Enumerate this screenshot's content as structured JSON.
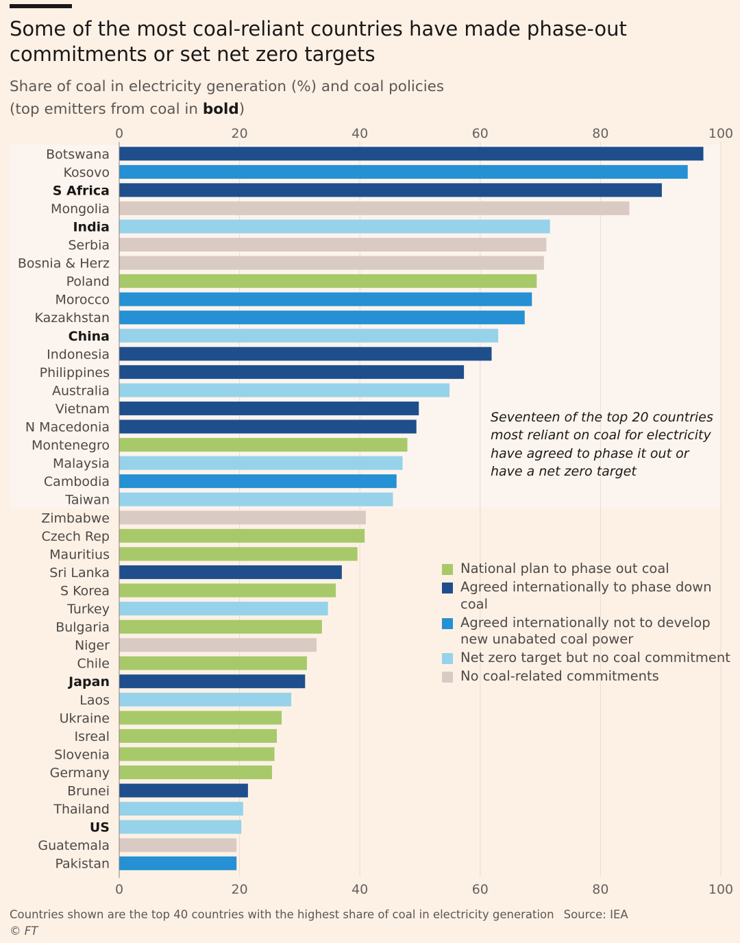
{
  "title": "Some of the most coal-reliant countries have made phase-out commitments or set net zero targets",
  "subtitle_line1": "Share of coal in electricity generation (%) and coal policies",
  "subtitle_line2_prefix": "(top emitters from coal in ",
  "subtitle_line2_bold": "bold",
  "subtitle_line2_suffix": ")",
  "annotation": "Seventeen of the top 20 countries most reliant on coal for electricity have agreed to phase it out or have a net zero target",
  "footnote": "Countries shown are the top 40 countries with the highest share of coal in electricity generation",
  "source": "Source: IEA",
  "credit": "© FT",
  "colors": {
    "national": "#a7c96a",
    "phase_down": "#1e4f8c",
    "not_develop": "#2590d3",
    "net_zero": "#96d3ea",
    "none": "#d9cbc3",
    "highlight_bg": "#fcf4ee",
    "grid": "#e8dcd2"
  },
  "legend": [
    {
      "key": "national",
      "label": "National plan to phase out coal"
    },
    {
      "key": "phase_down",
      "label": "Agreed internationally to phase down coal"
    },
    {
      "key": "not_develop",
      "label": "Agreed internationally not to develop new unabated coal power"
    },
    {
      "key": "net_zero",
      "label": "Net zero target but no coal commitment"
    },
    {
      "key": "none",
      "label": "No coal-related commitments"
    }
  ],
  "chart_data": {
    "type": "bar",
    "orientation": "horizontal",
    "title": "Some of the most coal-reliant countries have made phase-out commitments or set net zero targets",
    "xlabel": "Share of coal in electricity generation (%)",
    "xlim": [
      0,
      100
    ],
    "xticks": [
      0,
      20,
      40,
      60,
      80,
      100
    ],
    "highlight_top_n": 20,
    "categories": [
      "Botswana",
      "Kosovo",
      "S Africa",
      "Mongolia",
      "India",
      "Serbia",
      "Bosnia & Herz",
      "Poland",
      "Morocco",
      "Kazakhstan",
      "China",
      "Indonesia",
      "Philippines",
      "Australia",
      "Vietnam",
      "N Macedonia",
      "Montenegro",
      "Malaysia",
      "Cambodia",
      "Taiwan",
      "Zimbabwe",
      "Czech Rep",
      "Mauritius",
      "Sri Lanka",
      "S Korea",
      "Turkey",
      "Bulgaria",
      "Niger",
      "Chile",
      "Japan",
      "Laos",
      "Ukraine",
      "Isreal",
      "Slovenia",
      "Germany",
      "Brunei",
      "Thailand",
      "US",
      "Guatemala",
      "Pakistan"
    ],
    "values": [
      97.1,
      94.5,
      90.2,
      84.8,
      71.6,
      71.0,
      70.6,
      69.4,
      68.6,
      67.4,
      63.0,
      61.9,
      57.3,
      54.9,
      49.8,
      49.4,
      47.9,
      47.1,
      46.1,
      45.5,
      41.0,
      40.8,
      39.6,
      37.0,
      36.0,
      34.7,
      33.7,
      32.8,
      31.2,
      30.9,
      28.6,
      27.0,
      26.2,
      25.8,
      25.4,
      21.4,
      20.6,
      20.3,
      19.5,
      19.5
    ],
    "policy": [
      "phase_down",
      "not_develop",
      "phase_down",
      "none",
      "net_zero",
      "none",
      "none",
      "national",
      "not_develop",
      "not_develop",
      "net_zero",
      "phase_down",
      "phase_down",
      "net_zero",
      "phase_down",
      "phase_down",
      "national",
      "net_zero",
      "not_develop",
      "net_zero",
      "none",
      "national",
      "national",
      "phase_down",
      "national",
      "net_zero",
      "national",
      "none",
      "national",
      "phase_down",
      "net_zero",
      "national",
      "national",
      "national",
      "national",
      "phase_down",
      "net_zero",
      "net_zero",
      "none",
      "not_develop"
    ],
    "bold_countries": [
      "S Africa",
      "India",
      "China",
      "Japan",
      "US"
    ]
  }
}
